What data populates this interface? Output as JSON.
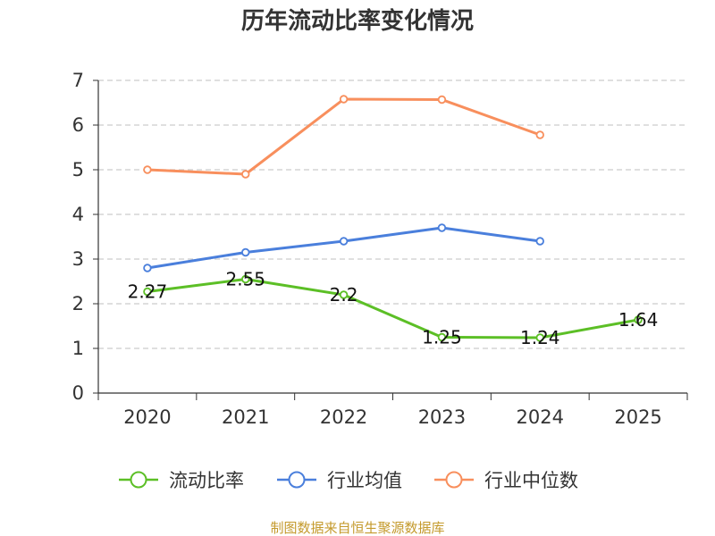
{
  "chart_data": {
    "type": "line",
    "title": "历年流动比率变化情况",
    "categories": [
      "2020",
      "2021",
      "2022",
      "2023",
      "2024",
      "2025"
    ],
    "ylim": [
      0,
      7
    ],
    "yticks": [
      "0",
      "1",
      "2",
      "3",
      "4",
      "5",
      "6",
      "7"
    ],
    "grid": "horizontal-dashed",
    "legend_position": "bottom",
    "series": [
      {
        "name": "流动比率",
        "color": "#5cbf26",
        "values": [
          2.27,
          2.55,
          2.2,
          1.25,
          1.24,
          1.64
        ],
        "labels": [
          "2.27",
          "2.55",
          "2.2",
          "1.25",
          "1.24",
          "1.64"
        ]
      },
      {
        "name": "行业均值",
        "color": "#4a7fdc",
        "values": [
          2.8,
          3.15,
          3.4,
          3.7,
          3.4,
          null
        ]
      },
      {
        "name": "行业中位数",
        "color": "#f88f5d",
        "values": [
          5.0,
          4.9,
          6.58,
          6.57,
          5.78,
          null
        ]
      }
    ]
  },
  "source_note": "制图数据来自恒生聚源数据库",
  "source_color": "#c49a2c"
}
